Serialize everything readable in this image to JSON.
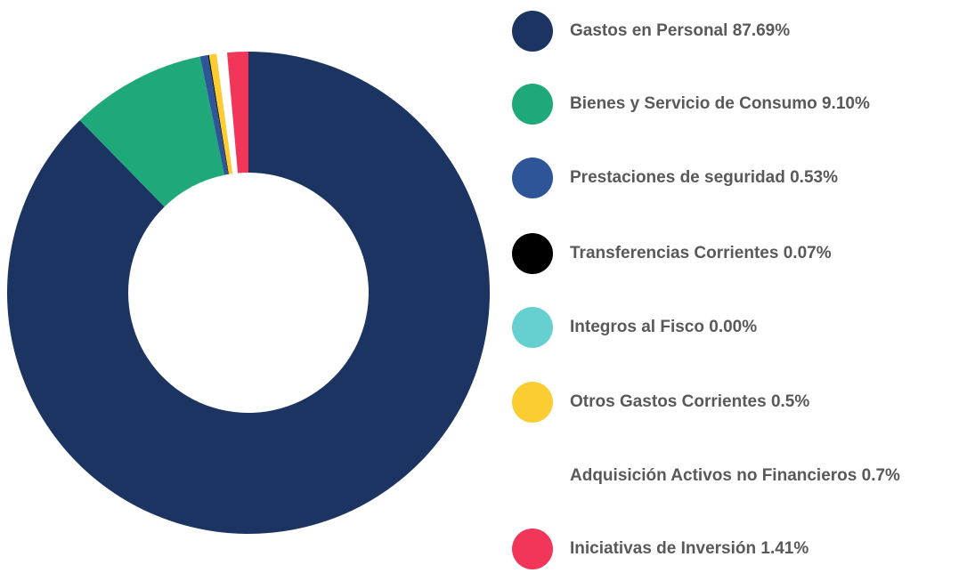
{
  "chart_data": {
    "type": "donut",
    "categories": [
      "Gastos en Personal",
      "Bienes y Servicio de Consumo",
      "Prestaciones de seguridad",
      "Transferencias Corrientes",
      "Integros al Fisco",
      "Otros Gastos Corrientes",
      "Adquisición Activos no Financieros",
      "Iniciativas de Inversión"
    ],
    "values": [
      87.69,
      9.1,
      0.53,
      0.07,
      0.0,
      0.5,
      0.7,
      1.41
    ],
    "value_labels": [
      "87.69%",
      "9.10%",
      "0.53%",
      "0.07%",
      "0.00%",
      "0.5%",
      "0.7%",
      "1.41%"
    ],
    "colors": [
      "#1c3461",
      "#1fa97b",
      "#2e5597",
      "#000000",
      "#66cfcf",
      "#fccd32",
      "#ffffff",
      "#f2365a"
    ],
    "legend": "right"
  }
}
